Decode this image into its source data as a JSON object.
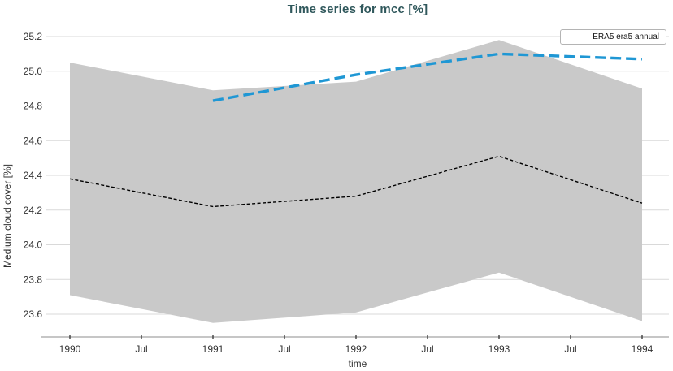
{
  "chart_data": {
    "type": "line",
    "title": "Time series for mcc [%]",
    "xlabel": "time",
    "ylabel": "Medium cloud cover [%]",
    "x": [
      1990,
      1991,
      1992,
      1993,
      1994
    ],
    "x_tick_labels": [
      "1990",
      "Jul",
      "1991",
      "Jul",
      "1992",
      "Jul",
      "1993",
      "Jul",
      "1994"
    ],
    "x_tick_positions": [
      1990,
      1990.5,
      1991,
      1991.5,
      1992,
      1992.5,
      1993,
      1993.5,
      1994
    ],
    "y_ticks": [
      23.6,
      23.8,
      24.0,
      24.2,
      24.4,
      24.6,
      24.8,
      25.0,
      25.2
    ],
    "ylim": [
      23.51,
      25.27
    ],
    "xlim": [
      1989.84,
      1994.19
    ],
    "grid": "horizontal-only",
    "legend_position": "top-right",
    "series": [
      {
        "legend": "ERA5 era5 annual",
        "color": "#000000",
        "dash": "short",
        "line_width": 1.4,
        "values": [
          24.38,
          24.22,
          24.28,
          24.51,
          24.24
        ]
      },
      {
        "legend": null,
        "color": "#1f97d4",
        "dash": "long",
        "line_width": 3.4,
        "values": [
          null,
          24.83,
          24.98,
          25.1,
          25.07
        ]
      }
    ],
    "band": {
      "color": "#c9c9c9",
      "upper": [
        25.05,
        24.89,
        24.94,
        25.18,
        24.9
      ],
      "lower": [
        23.71,
        23.55,
        23.61,
        23.84,
        23.56
      ]
    }
  },
  "colors": {
    "title": "#30585c",
    "tick_label": "#333333",
    "grid_line": "#d9d9d9",
    "axis_line": "#b3b3b3",
    "tick_mark": "#333333"
  }
}
